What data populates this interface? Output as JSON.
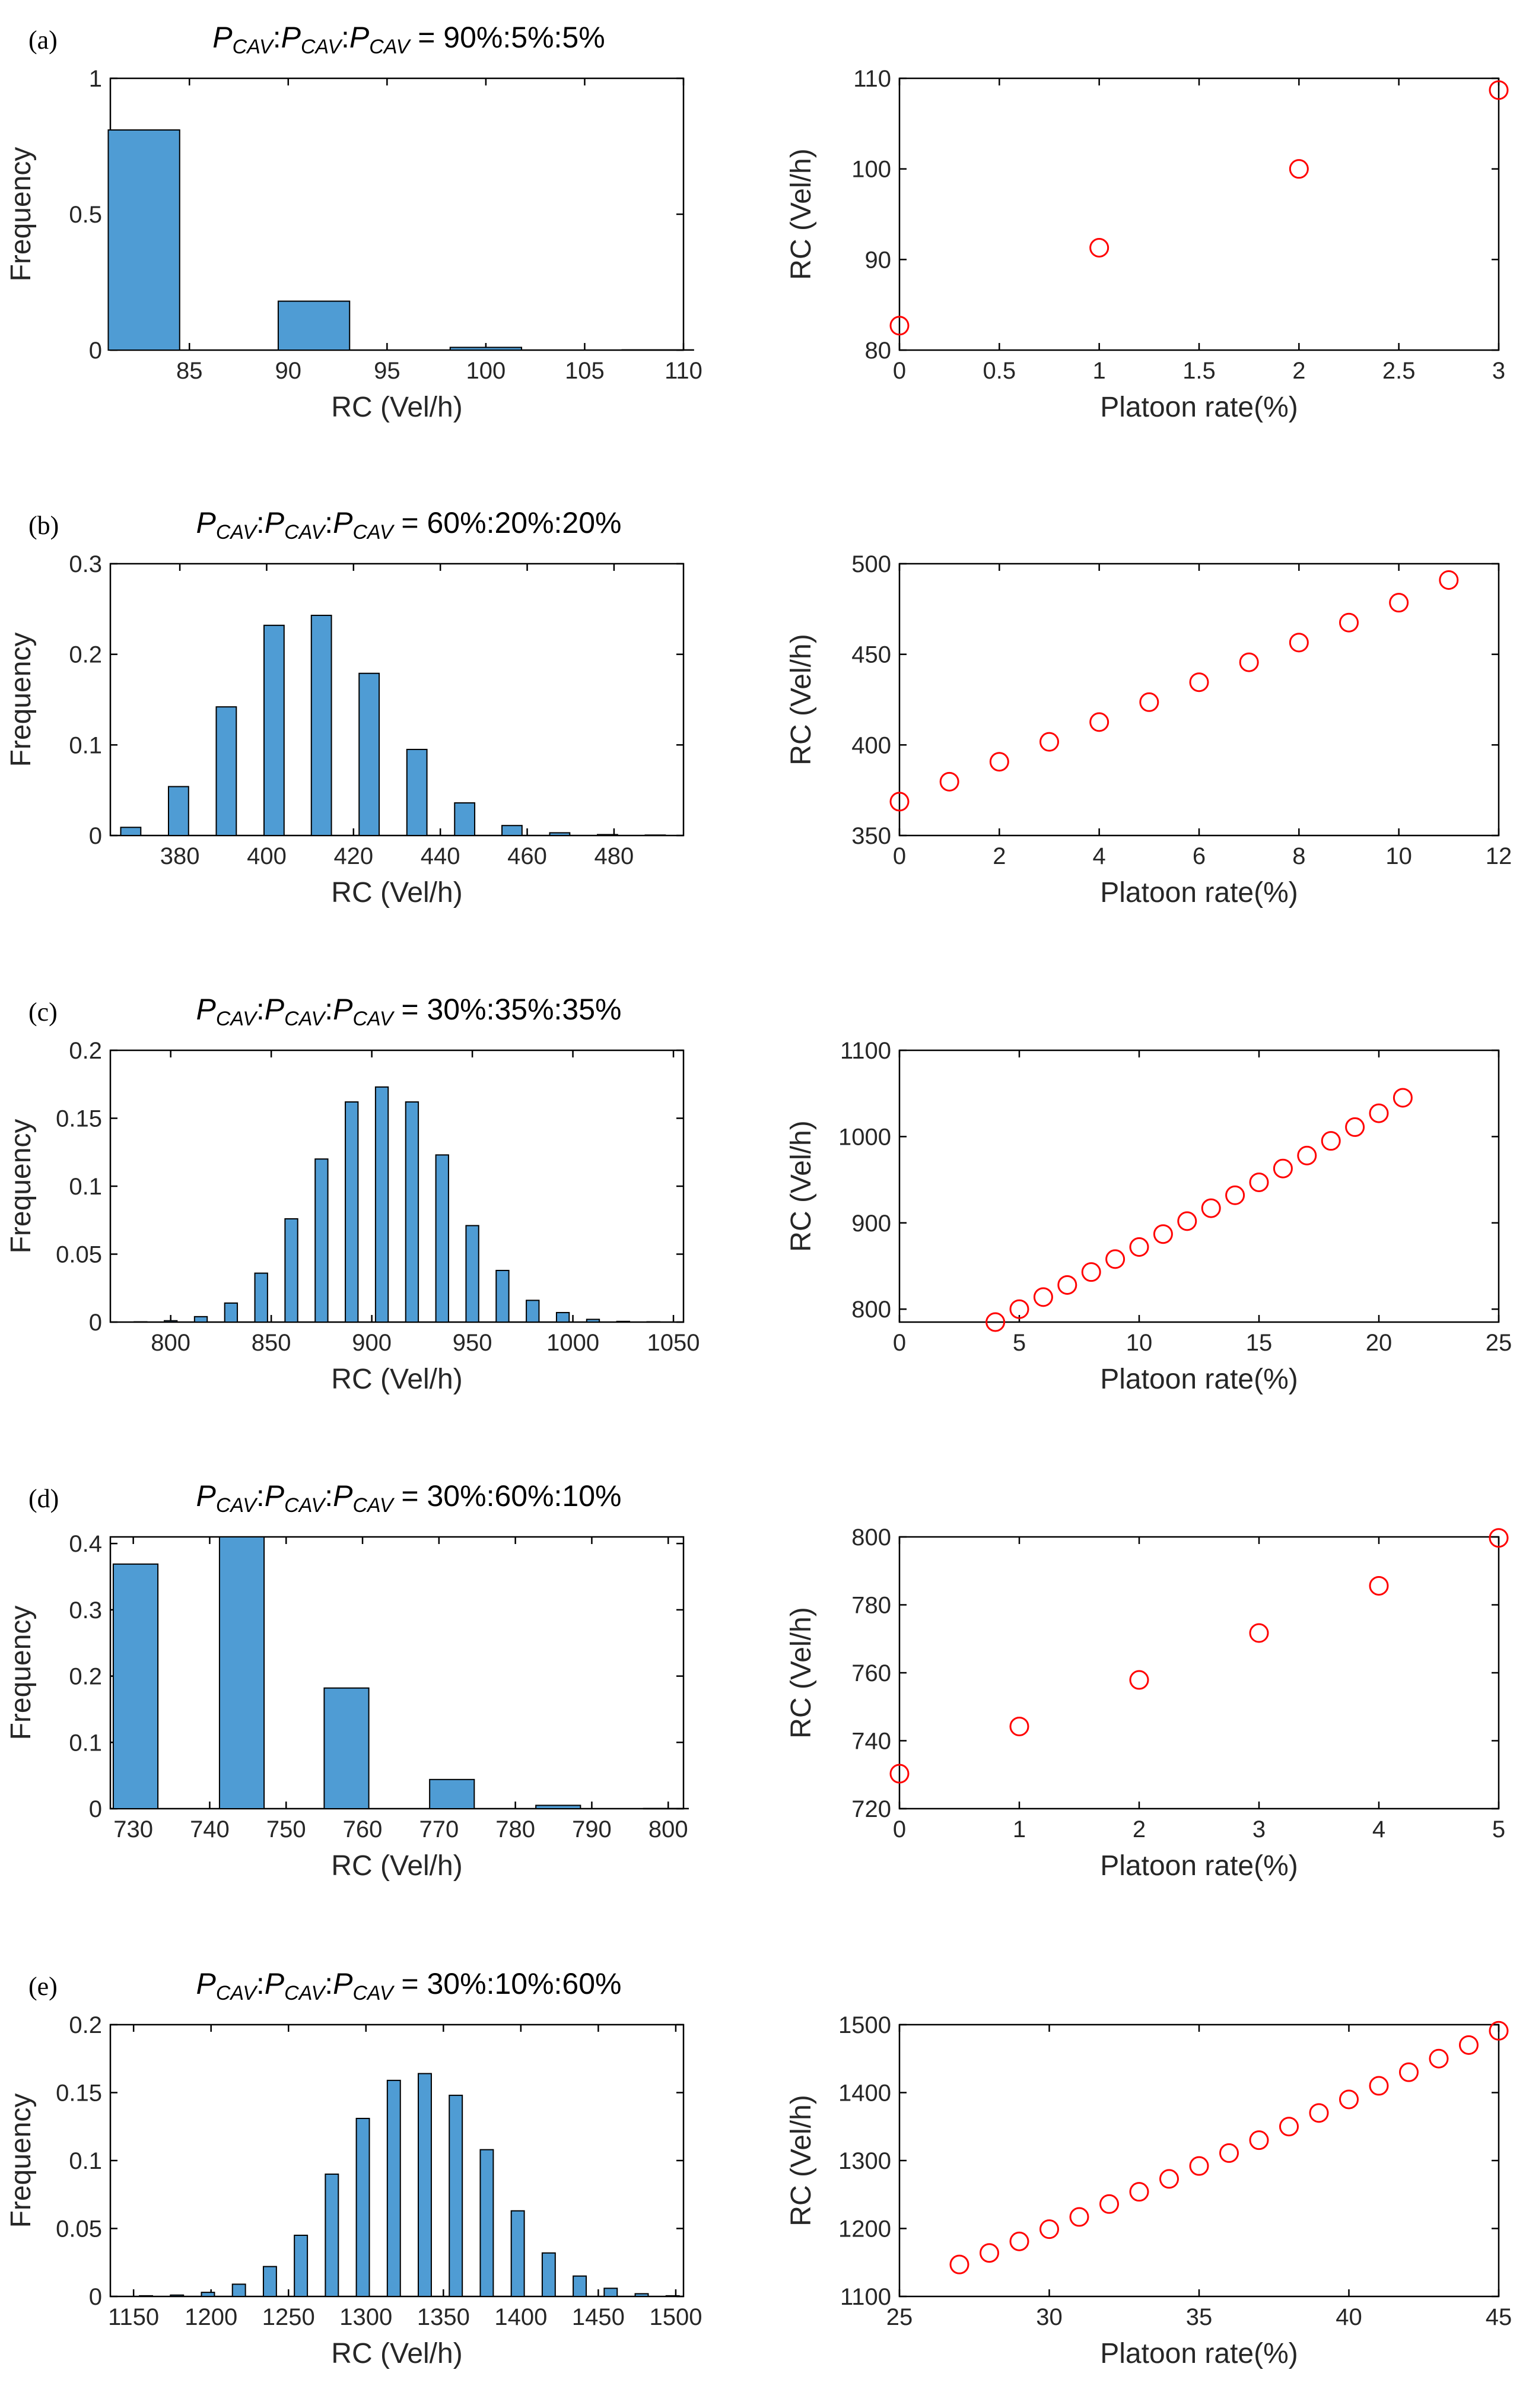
{
  "chart_data": [
    {
      "panel": "(a)",
      "title": {
        "var": "P",
        "sub": "CAV",
        "ratio": "90%:5%:5%"
      },
      "histogram": {
        "type": "bar",
        "xlabel": "RC (Vel/h)",
        "ylabel": "Frequency",
        "xlim": [
          81,
          110
        ],
        "ylim": [
          0,
          1
        ],
        "xticks": [
          85,
          90,
          95,
          100,
          105,
          110
        ],
        "yticks": [
          0,
          0.5,
          1
        ],
        "categories": [
          82.7,
          91.3,
          100,
          108.7
        ],
        "values": [
          0.81,
          0.18,
          0.01,
          0.001
        ]
      },
      "scatter": {
        "type": "scatter",
        "xlabel": "Platoon rate(%)",
        "ylabel": "RC (Vel/h)",
        "xlim": [
          0,
          3
        ],
        "ylim": [
          80,
          110
        ],
        "xticks": [
          0,
          0.5,
          1,
          1.5,
          2,
          2.5,
          3
        ],
        "yticks": [
          80,
          90,
          100,
          110
        ],
        "x": [
          0,
          1,
          2,
          3
        ],
        "y": [
          82.7,
          91.3,
          100,
          108.7
        ]
      }
    },
    {
      "panel": "(b)",
      "title": {
        "var": "P",
        "sub": "CAV",
        "ratio": "60%:20%:20%"
      },
      "histogram": {
        "type": "bar",
        "xlabel": "RC (Vel/h)",
        "ylabel": "Frequency",
        "xlim": [
          364,
          496
        ],
        "ylim": [
          0,
          0.3
        ],
        "xticks": [
          380,
          400,
          420,
          440,
          460,
          480
        ],
        "yticks": [
          0,
          0.1,
          0.2,
          0.3
        ],
        "categories": [
          368.7,
          379.7,
          390.7,
          401.7,
          412.6,
          423.6,
          434.6,
          445.6,
          456.5,
          467.5,
          478.5,
          489.5
        ],
        "values": [
          0.009,
          0.054,
          0.142,
          0.232,
          0.243,
          0.179,
          0.095,
          0.036,
          0.011,
          0.003,
          0.001,
          0.0005
        ]
      },
      "scatter": {
        "type": "scatter",
        "xlabel": "Platoon rate(%)",
        "ylabel": "RC (Vel/h)",
        "xlim": [
          0,
          12
        ],
        "ylim": [
          350,
          500
        ],
        "xticks": [
          0,
          2,
          4,
          6,
          8,
          10,
          12
        ],
        "yticks": [
          350,
          400,
          450,
          500
        ],
        "x": [
          0,
          1,
          2,
          3,
          4,
          5,
          6,
          7,
          8,
          9,
          10,
          11
        ],
        "y": [
          368.7,
          379.7,
          390.7,
          401.7,
          412.6,
          423.6,
          434.6,
          445.6,
          456.5,
          467.5,
          478.5,
          491
        ]
      }
    },
    {
      "panel": "(c)",
      "title": {
        "var": "P",
        "sub": "CAV",
        "ratio": "30%:35%:35%"
      },
      "histogram": {
        "type": "bar",
        "xlabel": "RC (Vel/h)",
        "ylabel": "Frequency",
        "xlim": [
          770,
          1055
        ],
        "ylim": [
          0,
          0.2
        ],
        "xticks": [
          800,
          850,
          900,
          950,
          1000,
          1050
        ],
        "yticks": [
          0,
          0.05,
          0.1,
          0.15,
          0.2
        ],
        "categories": [
          785,
          800,
          815,
          830,
          845,
          860,
          875,
          890,
          905,
          920,
          935,
          950,
          965,
          980,
          995,
          1010,
          1025,
          1040
        ],
        "values": [
          0.0002,
          0.001,
          0.004,
          0.014,
          0.036,
          0.076,
          0.12,
          0.162,
          0.173,
          0.162,
          0.123,
          0.071,
          0.038,
          0.016,
          0.007,
          0.002,
          0.0005,
          0.0002
        ]
      },
      "scatter": {
        "type": "scatter",
        "xlabel": "Platoon rate(%)",
        "ylabel": "RC (Vel/h)",
        "xlim": [
          0,
          25
        ],
        "ylim": [
          785,
          1100
        ],
        "xticks": [
          0,
          5,
          10,
          15,
          20,
          25
        ],
        "yticks": [
          800,
          900,
          1000,
          1100
        ],
        "x": [
          4,
          5,
          6,
          7,
          8,
          9,
          10,
          11,
          12,
          13,
          14,
          15,
          16,
          17,
          18,
          19,
          20,
          21
        ],
        "y": [
          785,
          800,
          814,
          828,
          843,
          858,
          872,
          887,
          902,
          917,
          932,
          947,
          963,
          978,
          995,
          1011,
          1027,
          1045
        ]
      }
    },
    {
      "panel": "(d)",
      "title": {
        "var": "P",
        "sub": "CAV",
        "ratio": "30%:60%:10%"
      },
      "histogram": {
        "type": "bar",
        "xlabel": "RC (Vel/h)",
        "ylabel": "Frequency",
        "xlim": [
          727,
          802
        ],
        "ylim": [
          0,
          0.41
        ],
        "xticks": [
          730,
          740,
          750,
          760,
          770,
          780,
          790,
          800
        ],
        "yticks": [
          0,
          0.1,
          0.2,
          0.3,
          0.4
        ],
        "categories": [
          730.3,
          744.2,
          757.9,
          771.7,
          785.6,
          799.7
        ],
        "values": [
          0.369,
          0.41,
          0.182,
          0.044,
          0.005,
          0.0003
        ]
      },
      "scatter": {
        "type": "scatter",
        "xlabel": "Platoon rate(%)",
        "ylabel": "RC (Vel/h)",
        "xlim": [
          0,
          5
        ],
        "ylim": [
          720,
          800
        ],
        "xticks": [
          0,
          1,
          2,
          3,
          4,
          5
        ],
        "yticks": [
          720,
          740,
          760,
          780,
          800
        ],
        "x": [
          0,
          1,
          2,
          3,
          4,
          5
        ],
        "y": [
          730.3,
          744.2,
          757.9,
          771.7,
          785.6,
          799.7
        ]
      }
    },
    {
      "panel": "(e)",
      "title": {
        "var": "P",
        "sub": "CAV",
        "ratio": "30%:10%:60%"
      },
      "histogram": {
        "type": "bar",
        "xlabel": "RC (Vel/h)",
        "ylabel": "Frequency",
        "xlim": [
          1135,
          1505
        ],
        "ylim": [
          0,
          0.2
        ],
        "xticks": [
          1150,
          1200,
          1250,
          1300,
          1350,
          1400,
          1450,
          1500
        ],
        "yticks": [
          0,
          0.05,
          0.1,
          0.15,
          0.2
        ],
        "categories": [
          1158,
          1178,
          1198,
          1218,
          1238,
          1258,
          1278,
          1298,
          1318,
          1338,
          1358,
          1378,
          1398,
          1418,
          1438,
          1458,
          1478,
          1498
        ],
        "values": [
          0.0005,
          0.001,
          0.003,
          0.009,
          0.022,
          0.045,
          0.09,
          0.131,
          0.159,
          0.164,
          0.148,
          0.108,
          0.063,
          0.032,
          0.015,
          0.006,
          0.002,
          0.0005
        ]
      },
      "scatter": {
        "type": "scatter",
        "xlabel": "Platoon rate(%)",
        "ylabel": "RC (Vel/h)",
        "xlim": [
          25,
          45
        ],
        "ylim": [
          1100,
          1500
        ],
        "xticks": [
          25,
          30,
          35,
          40,
          45
        ],
        "yticks": [
          1100,
          1200,
          1300,
          1400,
          1500
        ],
        "x": [
          27,
          28,
          29,
          30,
          31,
          32,
          33,
          34,
          35,
          36,
          37,
          38,
          39,
          40,
          41,
          42,
          43,
          44,
          45
        ],
        "y": [
          1147,
          1164,
          1181,
          1199,
          1217,
          1236,
          1254,
          1273,
          1292,
          1311,
          1330,
          1350,
          1370,
          1390,
          1410,
          1430,
          1450,
          1470,
          1491
        ]
      }
    }
  ]
}
